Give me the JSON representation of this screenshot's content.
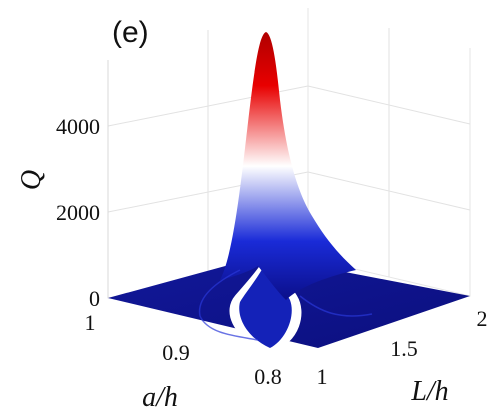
{
  "chart_data": {
    "type": "surface",
    "panel_label": "(e)",
    "xlabel": "a/h",
    "ylabel": "L/h",
    "zlabel": "Q",
    "x_ticks": [
      "1",
      "0.9",
      "0.8"
    ],
    "y_ticks": [
      "1",
      "1.5",
      "2"
    ],
    "z_ticks": [
      "0",
      "2000",
      "4000"
    ],
    "xlim": [
      0.78,
      1.0
    ],
    "ylim": [
      1.0,
      2.0
    ],
    "zlim": [
      0,
      5500
    ],
    "grid": true,
    "colormap": [
      "#0b0f8a",
      "#1a2bd8",
      "#ffffff",
      "#e80000",
      "#b00000"
    ],
    "peak": {
      "a_h": 0.8,
      "L_h": 1.03,
      "Q": 5000
    },
    "baseline_Q": 60
  }
}
